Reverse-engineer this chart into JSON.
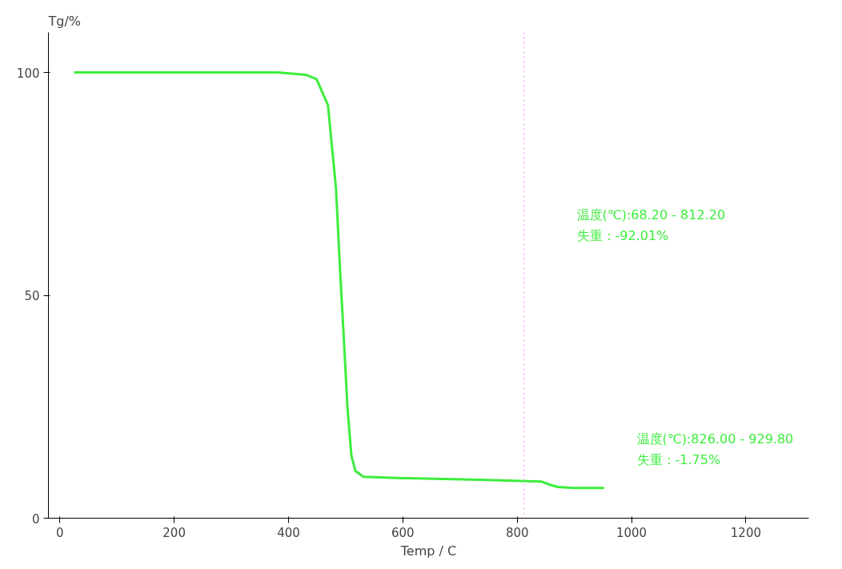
{
  "chart_data": {
    "type": "line",
    "ylabel": "Tg/%",
    "xlabel": "Temp / C",
    "x": [
      25,
      100,
      200,
      300,
      381,
      430,
      449,
      469,
      483,
      490,
      497,
      503,
      510,
      517,
      531,
      599,
      735,
      843,
      857,
      871,
      898,
      952
    ],
    "series": [
      {
        "color": "#3ded3d",
        "values": [
          100,
          100,
          100,
          100,
          100,
          99.5,
          98.5,
          92.7,
          74,
          56,
          39.6,
          25,
          14,
          10.6,
          9.3,
          9.0,
          8.6,
          8.2,
          7.5,
          7.0,
          6.8,
          6.8
        ]
      }
    ],
    "xlim": [
      -20,
      1310
    ],
    "ylim": [
      0,
      109
    ],
    "xticks": [
      0,
      200,
      400,
      600,
      800,
      1000,
      1200
    ],
    "yticks": [
      0,
      50,
      100
    ],
    "ref_lines": [
      {
        "axis": "x",
        "value": 812.2,
        "color": "#ee88ee",
        "line_style": "dotted"
      }
    ],
    "annotations": [
      "温度(℃):68.20 - 812.20\n失重：-92.01%",
      "温度(℃):826.00 - 929.80\n失重：-1.75%"
    ],
    "grid": false,
    "marker": "none",
    "line_style": "solid"
  }
}
